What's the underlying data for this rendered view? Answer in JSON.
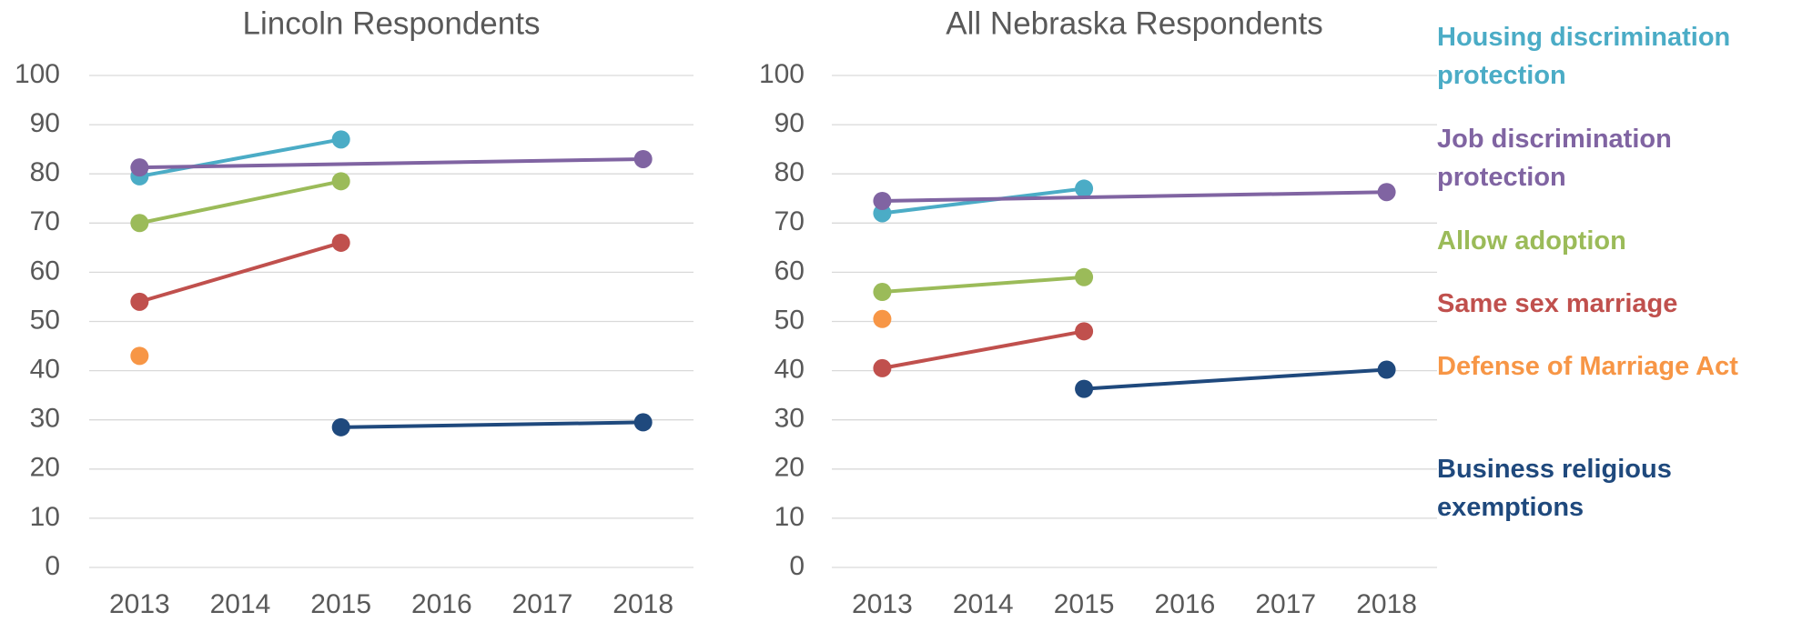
{
  "chart_data": [
    {
      "type": "line",
      "title": "Lincoln Respondents",
      "xlim": [
        2012.5,
        2018.5
      ],
      "xticks": [
        2013,
        2014,
        2015,
        2016,
        2017,
        2018
      ],
      "ylim": [
        0,
        100
      ],
      "yticks": [
        0,
        10,
        20,
        30,
        40,
        50,
        60,
        70,
        80,
        90,
        100
      ],
      "grid": true,
      "series": [
        {
          "name": "Housing discrimination protection",
          "color": "#4bacc6",
          "x": [
            2013,
            2015
          ],
          "values": [
            79.5,
            87
          ]
        },
        {
          "name": "Job discrimination protection",
          "color": "#8064a2",
          "x": [
            2013,
            2018
          ],
          "values": [
            81.3,
            83
          ]
        },
        {
          "name": "Allow adoption",
          "color": "#9bbb59",
          "x": [
            2013,
            2015
          ],
          "values": [
            70,
            78.5
          ]
        },
        {
          "name": "Same sex marriage",
          "color": "#c0504d",
          "x": [
            2013,
            2015
          ],
          "values": [
            54,
            66
          ]
        },
        {
          "name": "Defense of Marriage Act",
          "color": "#f79646",
          "x": [
            2013
          ],
          "values": [
            43
          ]
        },
        {
          "name": "Business religious exemptions",
          "color": "#1f497d",
          "x": [
            2015,
            2018
          ],
          "values": [
            28.5,
            29.5
          ]
        }
      ]
    },
    {
      "type": "line",
      "title": "All Nebraska Respondents",
      "xlim": [
        2012.5,
        2018.5
      ],
      "xticks": [
        2013,
        2014,
        2015,
        2016,
        2017,
        2018
      ],
      "ylim": [
        0,
        100
      ],
      "yticks": [
        0,
        10,
        20,
        30,
        40,
        50,
        60,
        70,
        80,
        90,
        100
      ],
      "grid": true,
      "series": [
        {
          "name": "Housing discrimination protection",
          "color": "#4bacc6",
          "x": [
            2013,
            2015
          ],
          "values": [
            72,
            77
          ]
        },
        {
          "name": "Job discrimination protection",
          "color": "#8064a2",
          "x": [
            2013,
            2018
          ],
          "values": [
            74.5,
            76.3
          ]
        },
        {
          "name": "Allow adoption",
          "color": "#9bbb59",
          "x": [
            2013,
            2015
          ],
          "values": [
            56,
            59
          ]
        },
        {
          "name": "Same sex marriage",
          "color": "#c0504d",
          "x": [
            2013,
            2015
          ],
          "values": [
            40.5,
            48
          ]
        },
        {
          "name": "Defense of Marriage Act",
          "color": "#f79646",
          "x": [
            2013
          ],
          "values": [
            50.5
          ]
        },
        {
          "name": "Business religious exemptions",
          "color": "#1f497d",
          "x": [
            2015,
            2018
          ],
          "values": [
            36.3,
            40.2
          ]
        }
      ]
    }
  ]
}
